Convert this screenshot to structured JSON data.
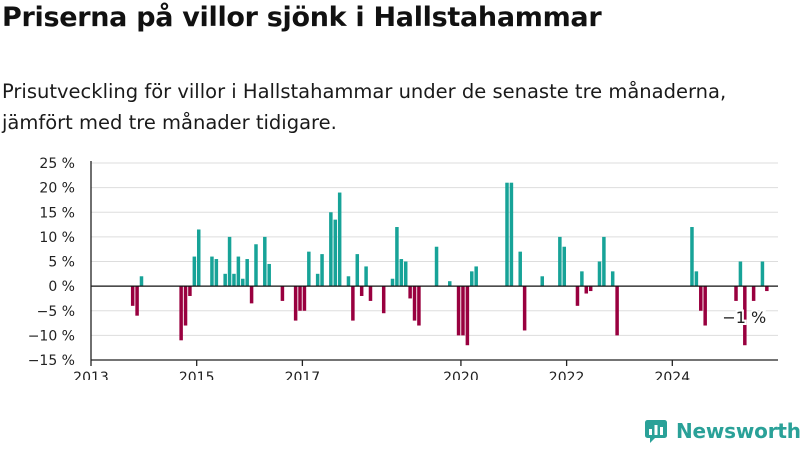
{
  "header": {
    "title": "Priserna på villor sjönk i Hallstahammar",
    "subtitle": "Prisutveckling för villor i Hallstahammar under de senaste tre månaderna, jämfört med tre månader tidigare."
  },
  "brand": {
    "name": "Newsworthy",
    "icon": "newsworthy-logo-icon",
    "color": "#2aa198"
  },
  "chart_data": {
    "type": "bar",
    "x_unit": "month",
    "x_start": "2013-07",
    "values": [
      0,
      0,
      0,
      -4,
      -6,
      2,
      0,
      0,
      0,
      0,
      0,
      0,
      0,
      0,
      -11,
      -8,
      -2,
      6,
      11.5,
      0,
      0,
      6,
      5.5,
      0,
      2.5,
      10,
      2.5,
      6,
      1.5,
      5.5,
      -3.5,
      8.5,
      0,
      10,
      4.5,
      0,
      0,
      -3,
      0,
      0,
      -7,
      -5,
      -5,
      7,
      0,
      2.5,
      6.5,
      0,
      15,
      13.5,
      19,
      0,
      2,
      -7,
      6.5,
      -2,
      4,
      -3,
      0,
      0,
      -5.5,
      0,
      1.5,
      12,
      5.5,
      5,
      -2.5,
      -7,
      -8,
      0,
      0,
      0,
      8,
      0,
      0,
      1,
      0,
      -10,
      -10,
      -12,
      3,
      4,
      0,
      0,
      0,
      0,
      0,
      0,
      21,
      21,
      0,
      7,
      -9,
      0,
      0,
      0,
      2,
      0,
      0,
      0,
      10,
      8,
      0,
      0,
      -4,
      3,
      -1.5,
      -1,
      0,
      5,
      10,
      0,
      3,
      -10,
      0,
      0,
      0,
      0,
      0,
      0,
      0,
      0,
      0,
      0,
      0,
      0,
      0,
      0,
      0,
      0,
      12,
      3,
      -5,
      -8,
      0,
      0,
      0,
      0,
      0,
      0,
      -3,
      5,
      -12,
      0,
      -3,
      0,
      5,
      -1
    ],
    "ylim": [
      -15,
      25
    ],
    "yticks": [
      -15,
      -10,
      -5,
      0,
      5,
      10,
      15,
      20,
      25
    ],
    "ytick_labels": [
      "−15 %",
      "−10 %",
      "−5 %",
      "0 %",
      "5 %",
      "10 %",
      "15 %",
      "20 %",
      "25 %"
    ],
    "xlim": [
      "2013-01",
      "2025-12"
    ],
    "xticks": [
      "2013-01",
      "2015-01",
      "2017-01",
      "2020-01",
      "2022-01",
      "2024-01"
    ],
    "xtick_labels": [
      "2013",
      "2015",
      "2017",
      "2020",
      "2022",
      "2024"
    ],
    "colors": {
      "positive": "#17a398",
      "negative": "#99003f",
      "gridline": "#dddddd",
      "zero_line": "#111111",
      "axis": "#222222"
    },
    "grid": true,
    "annotation": {
      "text": "−1 %",
      "x": "2025-04",
      "y": -1
    }
  }
}
